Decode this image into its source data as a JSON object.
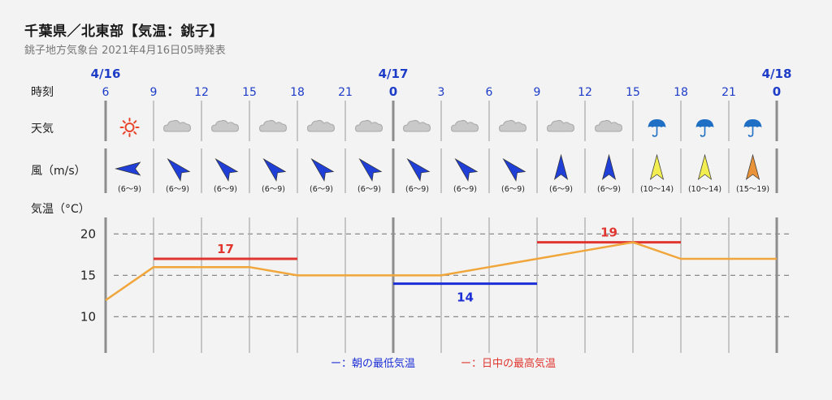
{
  "header": {
    "title": "千葉県／北東部【気温：銚子】",
    "subtitle": "銚子地方気象台 2021年4月16日05時発表"
  },
  "row_labels": {
    "time": "時刻",
    "weather": "天気",
    "wind": "風（m/s）",
    "temp": "気温（°C）"
  },
  "colors": {
    "temperature_line": "#f0a63a",
    "max_line": "#e0362f",
    "min_line": "#1c2fd6",
    "tick_blue": "#1d3cc7",
    "sun": "#e8442a",
    "umbrella": "#1f6fc4",
    "wind_blue": "#1f3fd6",
    "wind_yellow": "#f2ee52",
    "wind_orange": "#e8923a"
  },
  "forecast": [
    {
      "date": "4/16",
      "hour": "6",
      "weather_icon": "sun-icon",
      "wind_dir": "W",
      "wind_range": "(6〜9)",
      "wind_level": "blue"
    },
    {
      "date": "",
      "hour": "9",
      "weather_icon": "cloud-icon",
      "wind_dir": "NW",
      "wind_range": "(6〜9)",
      "wind_level": "blue"
    },
    {
      "date": "",
      "hour": "12",
      "weather_icon": "cloud-icon",
      "wind_dir": "NW",
      "wind_range": "(6〜9)",
      "wind_level": "blue"
    },
    {
      "date": "",
      "hour": "15",
      "weather_icon": "cloud-icon",
      "wind_dir": "NW",
      "wind_range": "(6〜9)",
      "wind_level": "blue"
    },
    {
      "date": "",
      "hour": "18",
      "weather_icon": "cloud-icon",
      "wind_dir": "NW",
      "wind_range": "(6〜9)",
      "wind_level": "blue"
    },
    {
      "date": "",
      "hour": "21",
      "weather_icon": "cloud-icon",
      "wind_dir": "NW",
      "wind_range": "(6〜9)",
      "wind_level": "blue"
    },
    {
      "date": "4/17",
      "hour": "0",
      "weather_icon": "cloud-icon",
      "wind_dir": "NW",
      "wind_range": "(6〜9)",
      "wind_level": "blue"
    },
    {
      "date": "",
      "hour": "3",
      "weather_icon": "cloud-icon",
      "wind_dir": "NW",
      "wind_range": "(6〜9)",
      "wind_level": "blue"
    },
    {
      "date": "",
      "hour": "6",
      "weather_icon": "cloud-icon",
      "wind_dir": "NW",
      "wind_range": "(6〜9)",
      "wind_level": "blue"
    },
    {
      "date": "",
      "hour": "9",
      "weather_icon": "cloud-icon",
      "wind_dir": "N",
      "wind_range": "(6〜9)",
      "wind_level": "blue"
    },
    {
      "date": "",
      "hour": "12",
      "weather_icon": "cloud-icon",
      "wind_dir": "N",
      "wind_range": "(6〜9)",
      "wind_level": "blue"
    },
    {
      "date": "",
      "hour": "15",
      "weather_icon": "umbrella-icon",
      "wind_dir": "N",
      "wind_range": "(10〜14)",
      "wind_level": "yellow"
    },
    {
      "date": "",
      "hour": "18",
      "weather_icon": "umbrella-icon",
      "wind_dir": "N",
      "wind_range": "(10〜14)",
      "wind_level": "yellow"
    },
    {
      "date": "",
      "hour": "21",
      "weather_icon": "umbrella-icon",
      "wind_dir": "N",
      "wind_range": "(15〜19)",
      "wind_level": "orange"
    },
    {
      "date": "4/18",
      "hour": "0",
      "weather_icon": "",
      "wind_dir": "",
      "wind_range": "",
      "wind_level": ""
    }
  ],
  "chart_data": {
    "type": "line",
    "title": "",
    "xlabel": "時刻",
    "ylabel": "気温（°C）",
    "x": [
      "4/16 6",
      "9",
      "12",
      "15",
      "18",
      "21",
      "4/17 0",
      "3",
      "6",
      "9",
      "12",
      "15",
      "18",
      "21",
      "4/18 0"
    ],
    "ylim": [
      7,
      22
    ],
    "yticks": [
      10,
      15,
      20
    ],
    "grid": true,
    "series": [
      {
        "values": [
          12,
          16,
          16,
          16,
          15,
          15,
          15,
          15,
          16,
          17,
          18,
          19,
          17,
          17,
          17
        ]
      }
    ],
    "segments": [
      {
        "kind": "max",
        "value": 17,
        "label": "17",
        "from_index": 1,
        "to_index": 4
      },
      {
        "kind": "min",
        "value": 14,
        "label": "14",
        "from_index": 6,
        "to_index": 9
      },
      {
        "kind": "max",
        "value": 19,
        "label": "19",
        "from_index": 9,
        "to_index": 12
      }
    ],
    "legend": {
      "min_label": "ー：朝の最低気温",
      "max_label": "ー：日中の最高気温",
      "placement": "bottom"
    }
  }
}
